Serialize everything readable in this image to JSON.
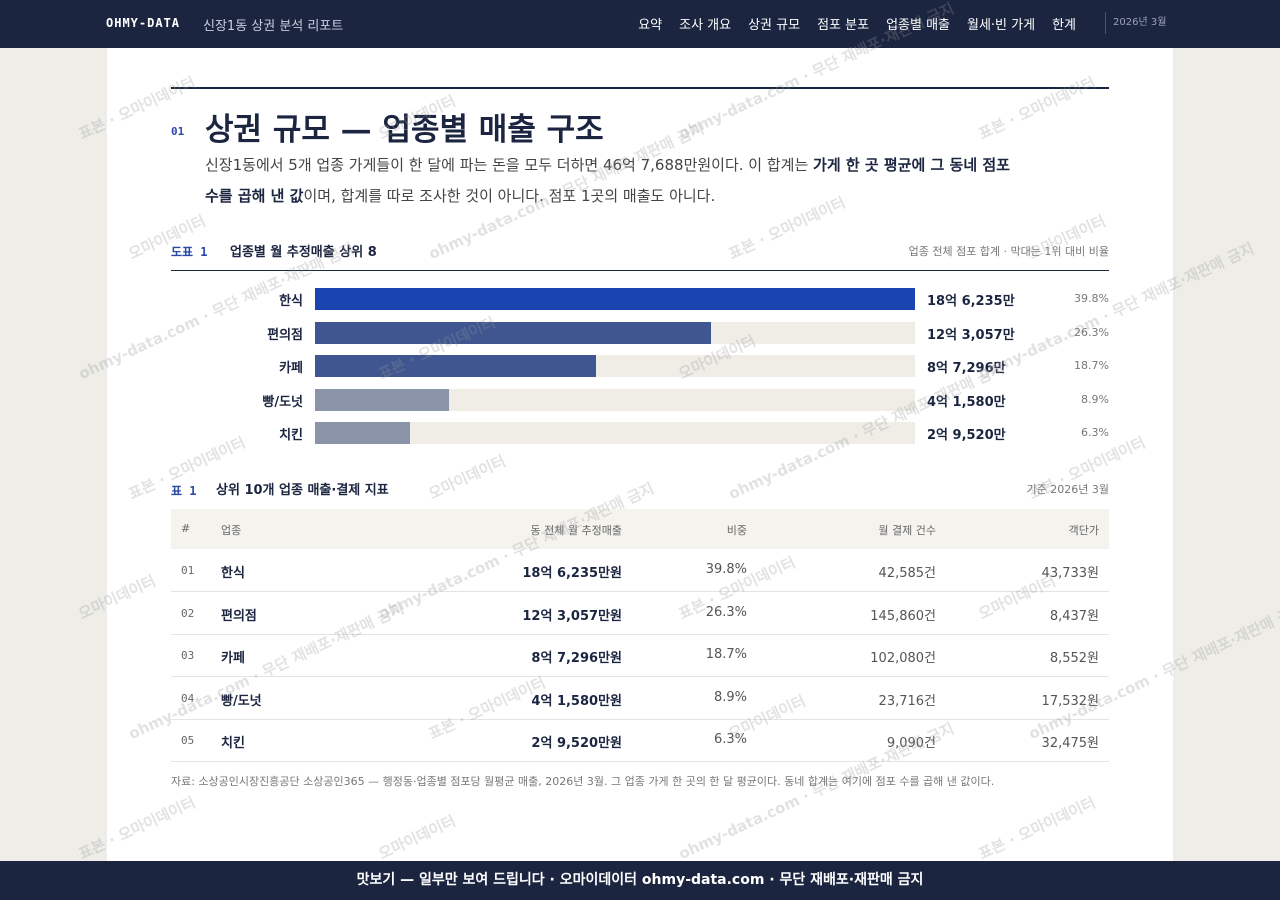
{
  "nav": {
    "brand": "OHMY-DATA",
    "subtitle": "신장1동 상권 분석 리포트",
    "links": [
      "요약",
      "조사 개요",
      "상권 규모",
      "점포 분포",
      "업종별 매출",
      "월세·빈 가게",
      "한계"
    ],
    "date": "2026년 3월"
  },
  "section": {
    "number": "01",
    "title": "상권 규모 — 업종별 매출 구조",
    "lead": [
      {
        "text": "신장1동에서 5개 업종 가게들이 한 달에 파는 돈을 모두 더하면 46억 7,688만원이다. 이 합계는 ",
        "bold": false
      },
      {
        "text": "가게 한 곳 평균에 그 동네 점포 수를 곱해 낸 값",
        "bold": true
      },
      {
        "text": "이며, 합계를 따로 조사한 것이 아니다. 점포 1곳의 매출도 아니다.",
        "bold": false
      }
    ]
  },
  "figure": {
    "label": "도표 1",
    "title": "업종별 월 추정매출 상위 8",
    "note": "업종 전체 점포 합계 · 막대는 1위 대비 비율"
  },
  "chart_data": {
    "type": "bar",
    "orientation": "horizontal",
    "categories": [
      "한식",
      "편의점",
      "카페",
      "빵/도넛",
      "치킨"
    ],
    "values": [
      186235,
      123057,
      87296,
      41580,
      29520
    ],
    "value_labels": [
      "18억 6,235만",
      "12억 3,057만",
      "8억 7,296만",
      "4억 1,580만",
      "2억 9,520만"
    ],
    "shares": [
      "39.8%",
      "26.3%",
      "18.7%",
      "8.9%",
      "6.3%"
    ],
    "colors": [
      "#1a44b0",
      "#3f5690",
      "#3f5690",
      "#8a93a8",
      "#8a93a8"
    ],
    "track_color": "#efede6"
  },
  "table": {
    "label": "표 1",
    "title": "상위 10개 업종 매출·결제 지표",
    "note": "기준 2026년 3월",
    "columns": [
      "#",
      "업종",
      "동 전체 월 추정매출",
      "비중",
      "월 결제 건수",
      "객단가"
    ],
    "rows": [
      [
        "01",
        "한식",
        "18억 6,235만원",
        "39.8%",
        "42,585건",
        "43,733원"
      ],
      [
        "02",
        "편의점",
        "12억 3,057만원",
        "26.3%",
        "145,860건",
        "8,437원"
      ],
      [
        "03",
        "카페",
        "8억 7,296만원",
        "18.7%",
        "102,080건",
        "8,552원"
      ],
      [
        "04",
        "빵/도넛",
        "4억 1,580만원",
        "8.9%",
        "23,716건",
        "17,532원"
      ],
      [
        "05",
        "치킨",
        "2억 9,520만원",
        "6.3%",
        "9,090건",
        "32,475원"
      ]
    ]
  },
  "source": "자료: 소상공인시장진흥공단 소상공인365 — 행정동·업종별 점포당 월평균 매출, 2026년 3월. 그 업종 가게 한 곳의 한 달 평균이다. 동네 합계는 여기에 점포 수를 곱해 낸 값이다.",
  "footer": "맛보기 — 일부만 보여 드립니다 · 오마이데이터 ohmy-data.com · 무단 재배포·재판매 금지",
  "watermarks": [
    "표본 · 오마이데이터",
    "오마이데이터",
    "ohmy-data.com · 무단 재배포·재판매 금지"
  ]
}
